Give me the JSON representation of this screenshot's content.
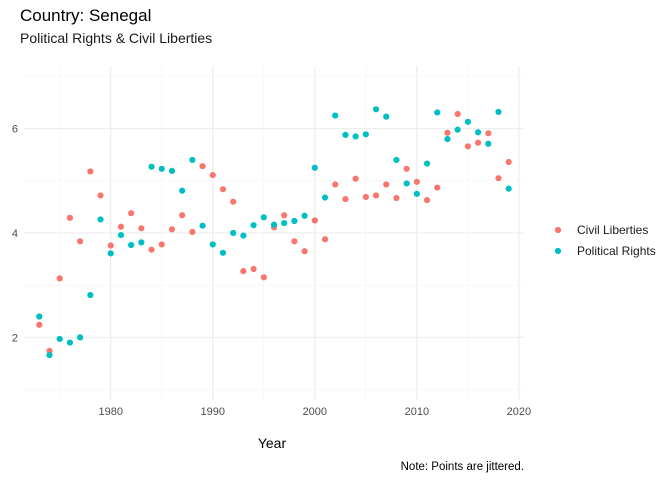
{
  "chart_data": {
    "type": "scatter",
    "title": "Country: Senegal",
    "subtitle": "Political Rights & Civil Liberties",
    "xlabel": "Year",
    "ylabel": "",
    "caption": "Note: Points are jittered.",
    "xlim": [
      1971.5,
      2020.5
    ],
    "ylim": [
      0.8,
      7.2
    ],
    "x_ticks": [
      1980,
      1990,
      2000,
      2010,
      2020
    ],
    "y_ticks": [
      2,
      4,
      6
    ],
    "grid": true,
    "legend_position": "right",
    "series": [
      {
        "name": "Civil Liberties",
        "color": "#F8766D",
        "points": [
          [
            1973,
            2.24
          ],
          [
            1974,
            1.74
          ],
          [
            1975,
            3.13
          ],
          [
            1976,
            4.29
          ],
          [
            1977,
            3.84
          ],
          [
            1978,
            5.18
          ],
          [
            1979,
            4.72
          ],
          [
            1980,
            3.76
          ],
          [
            1981,
            4.12
          ],
          [
            1982,
            4.38
          ],
          [
            1983,
            4.09
          ],
          [
            1984,
            3.68
          ],
          [
            1985,
            3.78
          ],
          [
            1986,
            4.07
          ],
          [
            1987,
            4.34
          ],
          [
            1988,
            4.02
          ],
          [
            1989,
            5.28
          ],
          [
            1990,
            5.11
          ],
          [
            1991,
            4.84
          ],
          [
            1992,
            4.6
          ],
          [
            1993,
            3.27
          ],
          [
            1994,
            3.31
          ],
          [
            1995,
            3.15
          ],
          [
            1996,
            4.11
          ],
          [
            1997,
            4.34
          ],
          [
            1998,
            3.84
          ],
          [
            1999,
            3.65
          ],
          [
            2000,
            4.24
          ],
          [
            2001,
            3.88
          ],
          [
            2002,
            4.93
          ],
          [
            2003,
            4.65
          ],
          [
            2004,
            5.04
          ],
          [
            2005,
            4.69
          ],
          [
            2006,
            4.72
          ],
          [
            2007,
            4.93
          ],
          [
            2008,
            4.67
          ],
          [
            2009,
            5.23
          ],
          [
            2010,
            4.98
          ],
          [
            2011,
            4.63
          ],
          [
            2012,
            4.87
          ],
          [
            2013,
            5.92
          ],
          [
            2014,
            6.28
          ],
          [
            2015,
            5.66
          ],
          [
            2016,
            5.73
          ],
          [
            2017,
            5.91
          ],
          [
            2018,
            5.05
          ],
          [
            2019,
            5.36
          ]
        ]
      },
      {
        "name": "Political Rights",
        "color": "#00BFC4",
        "points": [
          [
            1973,
            2.4
          ],
          [
            1974,
            1.66
          ],
          [
            1975,
            1.97
          ],
          [
            1976,
            1.9
          ],
          [
            1977,
            2.0
          ],
          [
            1978,
            2.81
          ],
          [
            1979,
            4.26
          ],
          [
            1980,
            3.61
          ],
          [
            1981,
            3.96
          ],
          [
            1982,
            3.77
          ],
          [
            1983,
            3.82
          ],
          [
            1984,
            5.27
          ],
          [
            1985,
            5.23
          ],
          [
            1986,
            5.19
          ],
          [
            1987,
            4.81
          ],
          [
            1988,
            5.4
          ],
          [
            1989,
            4.14
          ],
          [
            1990,
            3.78
          ],
          [
            1991,
            3.62
          ],
          [
            1992,
            4.0
          ],
          [
            1993,
            3.95
          ],
          [
            1994,
            4.15
          ],
          [
            1995,
            4.3
          ],
          [
            1996,
            4.16
          ],
          [
            1997,
            4.19
          ],
          [
            1998,
            4.23
          ],
          [
            1999,
            4.33
          ],
          [
            2000,
            5.25
          ],
          [
            2001,
            4.68
          ],
          [
            2002,
            6.25
          ],
          [
            2003,
            5.88
          ],
          [
            2004,
            5.85
          ],
          [
            2005,
            5.89
          ],
          [
            2006,
            6.37
          ],
          [
            2007,
            6.23
          ],
          [
            2008,
            5.4
          ],
          [
            2009,
            4.95
          ],
          [
            2010,
            4.75
          ],
          [
            2011,
            5.33
          ],
          [
            2012,
            6.31
          ],
          [
            2013,
            5.8
          ],
          [
            2014,
            5.98
          ],
          [
            2015,
            6.13
          ],
          [
            2016,
            5.93
          ],
          [
            2017,
            5.71
          ],
          [
            2018,
            6.32
          ],
          [
            2019,
            4.85
          ]
        ]
      }
    ]
  }
}
